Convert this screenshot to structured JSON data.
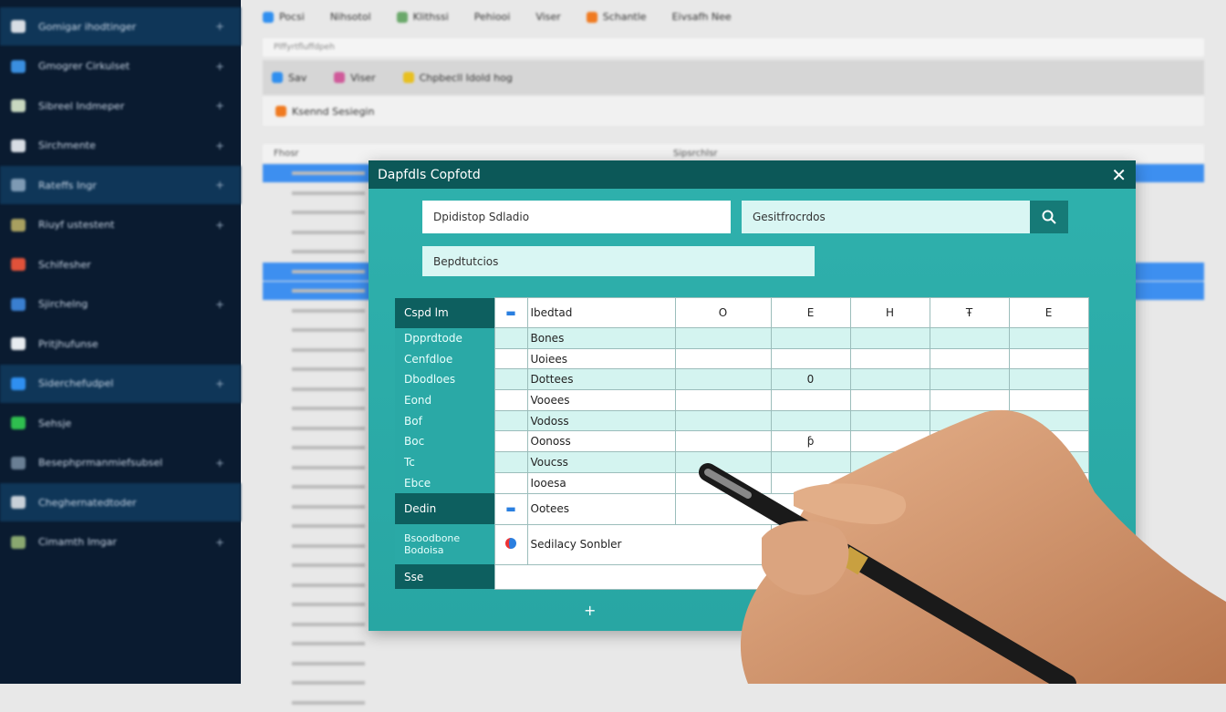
{
  "sidebar": {
    "items": [
      {
        "label": "Gomigar ihodtinger",
        "icon": "wrench-icon",
        "color": "#d8dde4"
      },
      {
        "label": "Gmogrer Cirkulset",
        "icon": "folder-icon",
        "color": "#3a8fe0"
      },
      {
        "label": "Sibreel Indmeper",
        "icon": "image-icon",
        "color": "#c8d8c0"
      },
      {
        "label": "Sirchmente",
        "icon": "inbox-icon",
        "color": "#d8dde4"
      },
      {
        "label": "Rateffs Ingr",
        "icon": "grid-icon",
        "color": "#7e9ab4"
      },
      {
        "label": "Riuyf ustestent",
        "icon": "chart-icon",
        "color": "#a8a060"
      },
      {
        "label": "Schifesher",
        "icon": "calendar-icon",
        "color": "#e0523a"
      },
      {
        "label": "Sjirchelng",
        "icon": "people-icon",
        "color": "#3a7fd0"
      },
      {
        "label": "Pritjhufunse",
        "icon": "cloud-icon",
        "color": "#e8ecf0"
      },
      {
        "label": "Siderchefudpel",
        "icon": "doc-icon",
        "color": "#2f8ff0"
      },
      {
        "label": "Sehsje",
        "icon": "chat-icon",
        "color": "#2fbf4f"
      },
      {
        "label": "Besephprmanmiefsubsel",
        "icon": "laptop-icon",
        "color": "#6a7f94"
      },
      {
        "label": "Cheghernatedtoder",
        "icon": "search-user-icon",
        "color": "#c8d0d8"
      },
      {
        "label": "Cimamth Imgar",
        "icon": "settings-icon",
        "color": "#8aa870"
      }
    ]
  },
  "toolbar": {
    "tabs": [
      "Pocsi",
      "Nihsotol",
      "Klithssi",
      "Pehiooi",
      "Viser",
      "Schantle",
      "Eivsafh Nee"
    ],
    "address": "Plffyrtfluffdpeh",
    "actions": [
      "Sav",
      "Viser",
      "Chpbecll Idold hog"
    ],
    "secondary": "Ksennd Sesiegin"
  },
  "background_list": {
    "col1": "Fhosr",
    "col2": "Sipsrchlsr"
  },
  "modal": {
    "title": "Dapfdls Copfotd",
    "field1": "Dpidistop Sdladio",
    "field2": "Gesitfrocrdos",
    "field3": "Bepdtutcios",
    "columns": [
      "Cspd lm",
      "",
      "Ibedtad",
      "O",
      "E",
      "H",
      "Ŧ",
      "E"
    ],
    "rows": [
      {
        "label": "Dpprdtode",
        "text": "Bones",
        "cells": [
          "",
          "",
          "",
          "",
          ""
        ]
      },
      {
        "label": "Cenfdloe",
        "text": "Uoiees",
        "cells": [
          "",
          "",
          "",
          "",
          ""
        ]
      },
      {
        "label": "Dbodloes",
        "text": "Dottees",
        "cells": [
          "",
          "0",
          "",
          "",
          ""
        ]
      },
      {
        "label": "Eond",
        "text": "Vooees",
        "cells": [
          "",
          "",
          "",
          "",
          ""
        ]
      },
      {
        "label": "Bof",
        "text": "Vodoss",
        "cells": [
          "",
          "",
          "",
          "",
          ""
        ]
      },
      {
        "label": "Boc",
        "text": "Oonoss",
        "cells": [
          "",
          "ƥ",
          "",
          "",
          ""
        ]
      },
      {
        "label": "Tc",
        "text": "Voucss",
        "cells": [
          "",
          "",
          "",
          "",
          ""
        ]
      },
      {
        "label": "Ebce",
        "text": "Iooesa",
        "cells": [
          "",
          "",
          "",
          "",
          ""
        ]
      }
    ],
    "section2": {
      "label": "Dedin",
      "text": "Ootees"
    },
    "section3": {
      "label1": "Bsoodbone",
      "label2": "Bodoisa",
      "text": "Sedilacy Sonbler"
    },
    "footer_label": "Sse",
    "add_label": "+",
    "close_label": "✕"
  },
  "colors": {
    "sidebar": "#0a1b30",
    "modal_header": "#0c5858",
    "modal_body": "#2aa9a6",
    "accent_blue": "#3d8ff0"
  }
}
